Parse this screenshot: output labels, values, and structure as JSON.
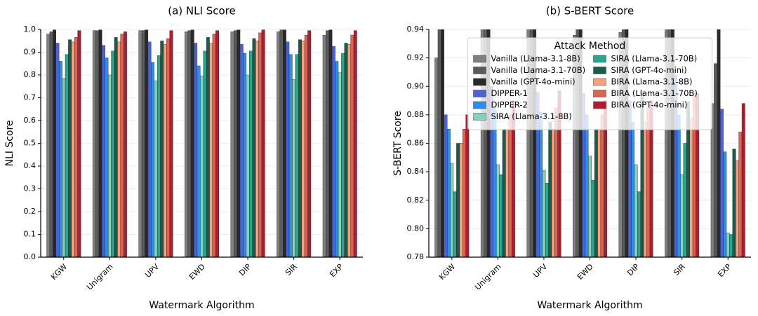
{
  "chart_data": [
    {
      "type": "bar",
      "title": "(a) NLI Score",
      "xlabel": "Watermark Algorithm",
      "ylabel": "NLI Score",
      "categories": [
        "KGW",
        "Unigram",
        "UPV",
        "EWD",
        "DIP",
        "SIR",
        "EXP"
      ],
      "series": [
        {
          "name": "Vanilla (Llama-3.1-8B)",
          "color": "#808080",
          "values": [
            0.98,
            0.995,
            0.995,
            0.99,
            0.99,
            0.99,
            0.975
          ]
        },
        {
          "name": "Vanilla (Llama-3.1-70B)",
          "color": "#5c5c5c",
          "values": [
            0.99,
            0.995,
            0.995,
            0.995,
            0.995,
            0.998,
            0.995
          ]
        },
        {
          "name": "Vanilla (GPT-4o-mini)",
          "color": "#2a2a2a",
          "values": [
            0.998,
            0.998,
            0.998,
            0.998,
            0.998,
            0.998,
            0.998
          ]
        },
        {
          "name": "DIPPER-1",
          "color": "#4a63d8",
          "values": [
            0.94,
            0.93,
            0.945,
            0.94,
            0.935,
            0.945,
            0.925
          ]
        },
        {
          "name": "DIPPER-2",
          "color": "#2b8ef0",
          "values": [
            0.86,
            0.875,
            0.855,
            0.84,
            0.895,
            0.89,
            0.86
          ]
        },
        {
          "name": "SIRA (Llama-3.1-8B)",
          "color": "#86d0bd",
          "values": [
            0.785,
            0.8,
            0.775,
            0.795,
            0.8,
            0.78,
            0.81
          ]
        },
        {
          "name": "SIRA (Llama-3.1-70B)",
          "color": "#2ca58d",
          "values": [
            0.89,
            0.905,
            0.885,
            0.905,
            0.905,
            0.89,
            0.895
          ]
        },
        {
          "name": "SIRA (GPT-4o-mini)",
          "color": "#1b5a4c",
          "values": [
            0.955,
            0.965,
            0.95,
            0.965,
            0.96,
            0.955,
            0.94
          ]
        },
        {
          "name": "BIRA (Llama-3.1-8B)",
          "color": "#f2a27f",
          "values": [
            0.945,
            0.945,
            0.935,
            0.94,
            0.95,
            0.95,
            0.935
          ]
        },
        {
          "name": "BIRA (Llama-3.1-70B)",
          "color": "#dc6450",
          "values": [
            0.965,
            0.98,
            0.96,
            0.98,
            0.985,
            0.975,
            0.975
          ]
        },
        {
          "name": "BIRA (GPT-4o-mini)",
          "color": "#b01c30",
          "values": [
            0.995,
            0.99,
            0.995,
            0.995,
            0.998,
            0.995,
            0.995
          ]
        }
      ],
      "ylim": [
        0,
        1
      ],
      "yticks": [
        {
          "value": 0,
          "label": "0.0"
        },
        {
          "value": 0.1,
          "label": "0.1"
        },
        {
          "value": 0.2,
          "label": "0.2"
        },
        {
          "value": 0.3,
          "label": "0.3"
        },
        {
          "value": 0.4,
          "label": "0.4"
        },
        {
          "value": 0.5,
          "label": "0.5"
        },
        {
          "value": 0.6,
          "label": "0.6"
        },
        {
          "value": 0.7,
          "label": "0.7"
        },
        {
          "value": 0.8,
          "label": "0.8"
        },
        {
          "value": 0.9,
          "label": "0.9"
        },
        {
          "value": 1,
          "label": "1.0"
        }
      ],
      "grid": true
    },
    {
      "type": "bar",
      "title": "(b) S-BERT Score",
      "xlabel": "Watermark Algorithm",
      "ylabel": "S-BERT Score",
      "categories": [
        "KGW",
        "Unigram",
        "UPV",
        "EWD",
        "DIP",
        "SIR",
        "EXP"
      ],
      "series": [
        {
          "name": "Vanilla (Llama-3.1-8B)",
          "color": "#808080",
          "values": [
            0.92,
            0.95,
            0.95,
            0.936,
            0.938,
            0.95,
            0.888
          ]
        },
        {
          "name": "Vanilla (Llama-3.1-70B)",
          "color": "#5c5c5c",
          "values": [
            0.95,
            0.95,
            0.95,
            0.95,
            0.95,
            0.95,
            0.916
          ]
        },
        {
          "name": "Vanilla (GPT-4o-mini)",
          "color": "#2a2a2a",
          "values": [
            0.95,
            0.95,
            0.95,
            0.95,
            0.95,
            0.95,
            0.95
          ]
        },
        {
          "name": "DIPPER-1",
          "color": "#4a63d8",
          "values": [
            0.88,
            0.9,
            0.896,
            0.895,
            0.89,
            0.908,
            0.884
          ]
        },
        {
          "name": "DIPPER-2",
          "color": "#2b8ef0",
          "values": [
            0.87,
            0.885,
            0.882,
            0.88,
            0.875,
            0.88,
            0.854
          ]
        },
        {
          "name": "SIRA (Llama-3.1-8B)",
          "color": "#86d0bd",
          "values": [
            0.846,
            0.845,
            0.841,
            0.851,
            0.845,
            0.838,
            0.797
          ]
        },
        {
          "name": "SIRA (Llama-3.1-70B)",
          "color": "#2ca58d",
          "values": [
            0.826,
            0.838,
            0.832,
            0.834,
            0.826,
            0.86,
            0.796
          ]
        },
        {
          "name": "SIRA (GPT-4o-mini)",
          "color": "#1b5a4c",
          "values": [
            0.86,
            0.87,
            0.875,
            0.87,
            0.896,
            0.889,
            0.856
          ]
        },
        {
          "name": "BIRA (Llama-3.1-8B)",
          "color": "#f2a27f",
          "values": [
            0.86,
            0.87,
            0.87,
            0.87,
            0.875,
            0.878,
            0.848
          ]
        },
        {
          "name": "BIRA (Llama-3.1-70B)",
          "color": "#dc6450",
          "values": [
            0.87,
            0.88,
            0.885,
            0.88,
            0.885,
            0.895,
            0.868
          ]
        },
        {
          "name": "BIRA (GPT-4o-mini)",
          "color": "#b01c30",
          "values": [
            0.88,
            0.89,
            0.897,
            0.89,
            0.89,
            0.895,
            0.888
          ]
        }
      ],
      "ylim": [
        0.78,
        0.94
      ],
      "yticks": [
        {
          "value": 0.78,
          "label": "0.78"
        },
        {
          "value": 0.8,
          "label": "0.80"
        },
        {
          "value": 0.82,
          "label": "0.82"
        },
        {
          "value": 0.84,
          "label": "0.84"
        },
        {
          "value": 0.86,
          "label": "0.86"
        },
        {
          "value": 0.88,
          "label": "0.88"
        },
        {
          "value": 0.9,
          "label": "0.90"
        },
        {
          "value": 0.92,
          "label": "0.92"
        },
        {
          "value": 0.94,
          "label": "0.94"
        }
      ],
      "grid": true,
      "legend_title": "Attack Method",
      "legend": "upper center"
    }
  ]
}
